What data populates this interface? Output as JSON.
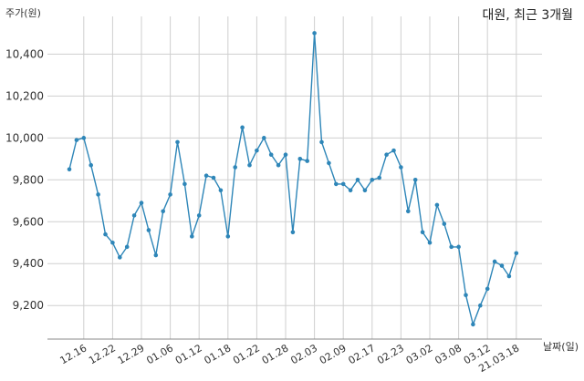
{
  "chart_data": {
    "type": "line",
    "title": "대원, 최근 3개월",
    "ylabel": "주가(원)",
    "xlabel": "날짜(일)",
    "ylim": [
      9040,
      10580
    ],
    "yticks": [
      9200,
      9400,
      9600,
      9800,
      10000,
      10200,
      10400
    ],
    "ytick_labels": [
      "9,200",
      "9,400",
      "9,600",
      "9,800",
      "10,000",
      "10,200",
      "10,400"
    ],
    "xtick_labels": [
      "12.16",
      "12.22",
      "12.29",
      "01.06",
      "01.12",
      "01.18",
      "01.22",
      "01.28",
      "02.03",
      "02.09",
      "02.17",
      "02.23",
      "03.02",
      "03.08",
      "03.12",
      "21.03.18"
    ],
    "xtick_positions": [
      2,
      6,
      10,
      14,
      18,
      22,
      26,
      30,
      34,
      38,
      42,
      46,
      50,
      54,
      58,
      62
    ],
    "series": [
      {
        "color": "#2e86b8",
        "values": [
          9850,
          9990,
          10000,
          9870,
          9730,
          9540,
          9500,
          9430,
          9480,
          9630,
          9690,
          9560,
          9440,
          9650,
          9730,
          9980,
          9780,
          9530,
          9630,
          9820,
          9810,
          9750,
          9530,
          9860,
          10050,
          9870,
          9940,
          10000,
          9920,
          9870,
          9920,
          9550,
          9900,
          9890,
          10500,
          9980,
          9880,
          9780,
          9780,
          9750,
          9800,
          9750,
          9800,
          9810,
          9920,
          9940,
          9860,
          9650,
          9800,
          9550,
          9500,
          9680,
          9590,
          9480,
          9480,
          9250,
          9110,
          9200,
          9280,
          9410,
          9390,
          9340,
          9450
        ]
      }
    ]
  }
}
